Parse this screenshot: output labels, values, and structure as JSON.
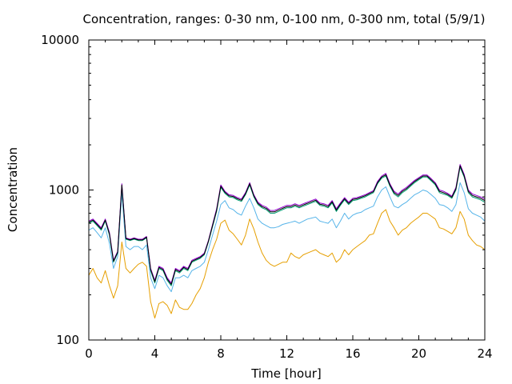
{
  "chart_data": {
    "type": "line",
    "title": "Concentration, ranges: 0-30 nm, 0-100 nm, 0-300 nm, total (5/9/1)",
    "xlabel": "Time [hour]",
    "ylabel": "Concentration",
    "xlim": [
      0,
      24
    ],
    "ylim": [
      100,
      10000
    ],
    "yscale": "log",
    "xticks": [
      0,
      4,
      8,
      12,
      16,
      20,
      24
    ],
    "xtick_labels": [
      "0",
      "4",
      "8",
      "12",
      "16",
      "20",
      "24"
    ],
    "yticks": [
      100,
      1000,
      10000
    ],
    "ytick_labels": [
      "100",
      "1000",
      "10000"
    ],
    "grid": false,
    "legend": "none",
    "series_colors": [
      "#E69F00",
      "#56B4E9",
      "#009E73",
      "#9400D3",
      "#000000"
    ],
    "x": [
      0.0,
      0.25,
      0.5,
      0.75,
      1.0,
      1.25,
      1.5,
      1.75,
      2.0,
      2.25,
      2.5,
      2.75,
      3.0,
      3.25,
      3.5,
      3.75,
      4.0,
      4.25,
      4.5,
      4.75,
      5.0,
      5.25,
      5.5,
      5.75,
      6.0,
      6.25,
      6.5,
      6.75,
      7.0,
      7.25,
      7.5,
      7.75,
      8.0,
      8.25,
      8.5,
      8.75,
      9.0,
      9.25,
      9.5,
      9.75,
      10.0,
      10.25,
      10.5,
      10.75,
      11.0,
      11.25,
      11.5,
      11.75,
      12.0,
      12.25,
      12.5,
      12.75,
      13.0,
      13.25,
      13.5,
      13.75,
      14.0,
      14.25,
      14.5,
      14.75,
      15.0,
      15.25,
      15.5,
      15.75,
      16.0,
      16.25,
      16.5,
      16.75,
      17.0,
      17.25,
      17.5,
      17.75,
      18.0,
      18.25,
      18.5,
      18.75,
      19.0,
      19.25,
      19.5,
      19.75,
      20.0,
      20.25,
      20.5,
      20.75,
      21.0,
      21.25,
      21.5,
      21.75,
      22.0,
      22.25,
      22.5,
      22.75,
      23.0,
      23.25,
      23.5,
      23.75,
      24.0
    ],
    "series": [
      {
        "values": [
          270,
          300,
          260,
          240,
          290,
          230,
          190,
          230,
          450,
          300,
          280,
          300,
          320,
          330,
          310,
          180,
          140,
          175,
          180,
          170,
          150,
          185,
          165,
          160,
          160,
          175,
          200,
          220,
          260,
          330,
          400,
          470,
          600,
          630,
          540,
          510,
          470,
          430,
          500,
          640,
          550,
          450,
          380,
          340,
          320,
          310,
          320,
          330,
          330,
          380,
          360,
          350,
          370,
          380,
          390,
          400,
          380,
          370,
          360,
          380,
          330,
          350,
          400,
          370,
          400,
          420,
          440,
          460,
          500,
          510,
          600,
          700,
          740,
          620,
          560,
          500,
          540,
          560,
          600,
          630,
          660,
          700,
          700,
          670,
          640,
          560,
          550,
          530,
          510,
          560,
          720,
          640,
          500,
          460,
          430,
          420,
          400
        ]
      },
      {
        "values": [
          540,
          560,
          520,
          480,
          560,
          440,
          300,
          360,
          950,
          420,
          400,
          420,
          420,
          400,
          430,
          260,
          220,
          270,
          260,
          230,
          210,
          260,
          260,
          270,
          260,
          290,
          300,
          310,
          330,
          400,
          500,
          620,
          800,
          850,
          760,
          740,
          700,
          680,
          780,
          880,
          760,
          640,
          600,
          580,
          560,
          560,
          570,
          590,
          600,
          610,
          620,
          600,
          620,
          640,
          650,
          660,
          620,
          610,
          600,
          640,
          560,
          620,
          700,
          640,
          680,
          700,
          710,
          740,
          760,
          780,
          900,
          1000,
          1050,
          900,
          780,
          760,
          800,
          830,
          880,
          930,
          960,
          1000,
          980,
          930,
          880,
          800,
          790,
          760,
          720,
          800,
          1120,
          960,
          750,
          700,
          680,
          660,
          620
        ]
      },
      {
        "values": [
          600,
          620,
          580,
          540,
          620,
          500,
          330,
          380,
          1060,
          470,
          460,
          470,
          460,
          460,
          480,
          290,
          240,
          300,
          290,
          250,
          230,
          290,
          280,
          300,
          290,
          330,
          340,
          350,
          370,
          450,
          570,
          720,
          1040,
          950,
          900,
          890,
          860,
          840,
          930,
          1080,
          900,
          800,
          760,
          740,
          700,
          700,
          720,
          740,
          760,
          760,
          780,
          760,
          780,
          800,
          820,
          840,
          790,
          780,
          760,
          820,
          720,
          790,
          860,
          800,
          850,
          860,
          880,
          900,
          930,
          960,
          1100,
          1200,
          1240,
          1060,
          940,
          900,
          960,
          1000,
          1060,
          1120,
          1170,
          1220,
          1220,
          1150,
          1080,
          960,
          940,
          920,
          880,
          1000,
          1420,
          1220,
          960,
          900,
          880,
          860,
          830
        ]
      },
      {
        "values": [
          620,
          640,
          600,
          560,
          640,
          520,
          340,
          390,
          1100,
          480,
          470,
          480,
          470,
          470,
          490,
          300,
          250,
          310,
          300,
          260,
          240,
          300,
          290,
          310,
          300,
          340,
          350,
          360,
          380,
          460,
          590,
          750,
          1080,
          980,
          930,
          920,
          890,
          870,
          960,
          1120,
          930,
          830,
          790,
          770,
          730,
          730,
          750,
          770,
          790,
          790,
          810,
          790,
          810,
          830,
          850,
          870,
          820,
          810,
          790,
          850,
          750,
          820,
          890,
          830,
          880,
          890,
          910,
          930,
          960,
          990,
          1140,
          1240,
          1290,
          1100,
          980,
          940,
          1000,
          1040,
          1100,
          1160,
          1210,
          1260,
          1260,
          1190,
          1120,
          1000,
          980,
          950,
          910,
          1040,
          1480,
          1270,
          1000,
          940,
          920,
          900,
          870
        ]
      },
      {
        "values": [
          610,
          630,
          590,
          550,
          630,
          510,
          335,
          385,
          1080,
          475,
          465,
          475,
          465,
          465,
          485,
          295,
          245,
          305,
          295,
          255,
          235,
          295,
          285,
          305,
          295,
          335,
          345,
          355,
          375,
          455,
          580,
          735,
          1060,
          965,
          915,
          905,
          875,
          855,
          945,
          1100,
          915,
          815,
          775,
          755,
          715,
          715,
          735,
          755,
          775,
          775,
          795,
          775,
          795,
          815,
          835,
          855,
          805,
          795,
          775,
          835,
          735,
          805,
          875,
          815,
          865,
          875,
          895,
          915,
          945,
          975,
          1120,
          1220,
          1265,
          1080,
          960,
          920,
          980,
          1020,
          1080,
          1140,
          1190,
          1240,
          1240,
          1170,
          1100,
          980,
          960,
          935,
          895,
          1020,
          1450,
          1245,
          980,
          920,
          900,
          880,
          850
        ]
      }
    ]
  }
}
